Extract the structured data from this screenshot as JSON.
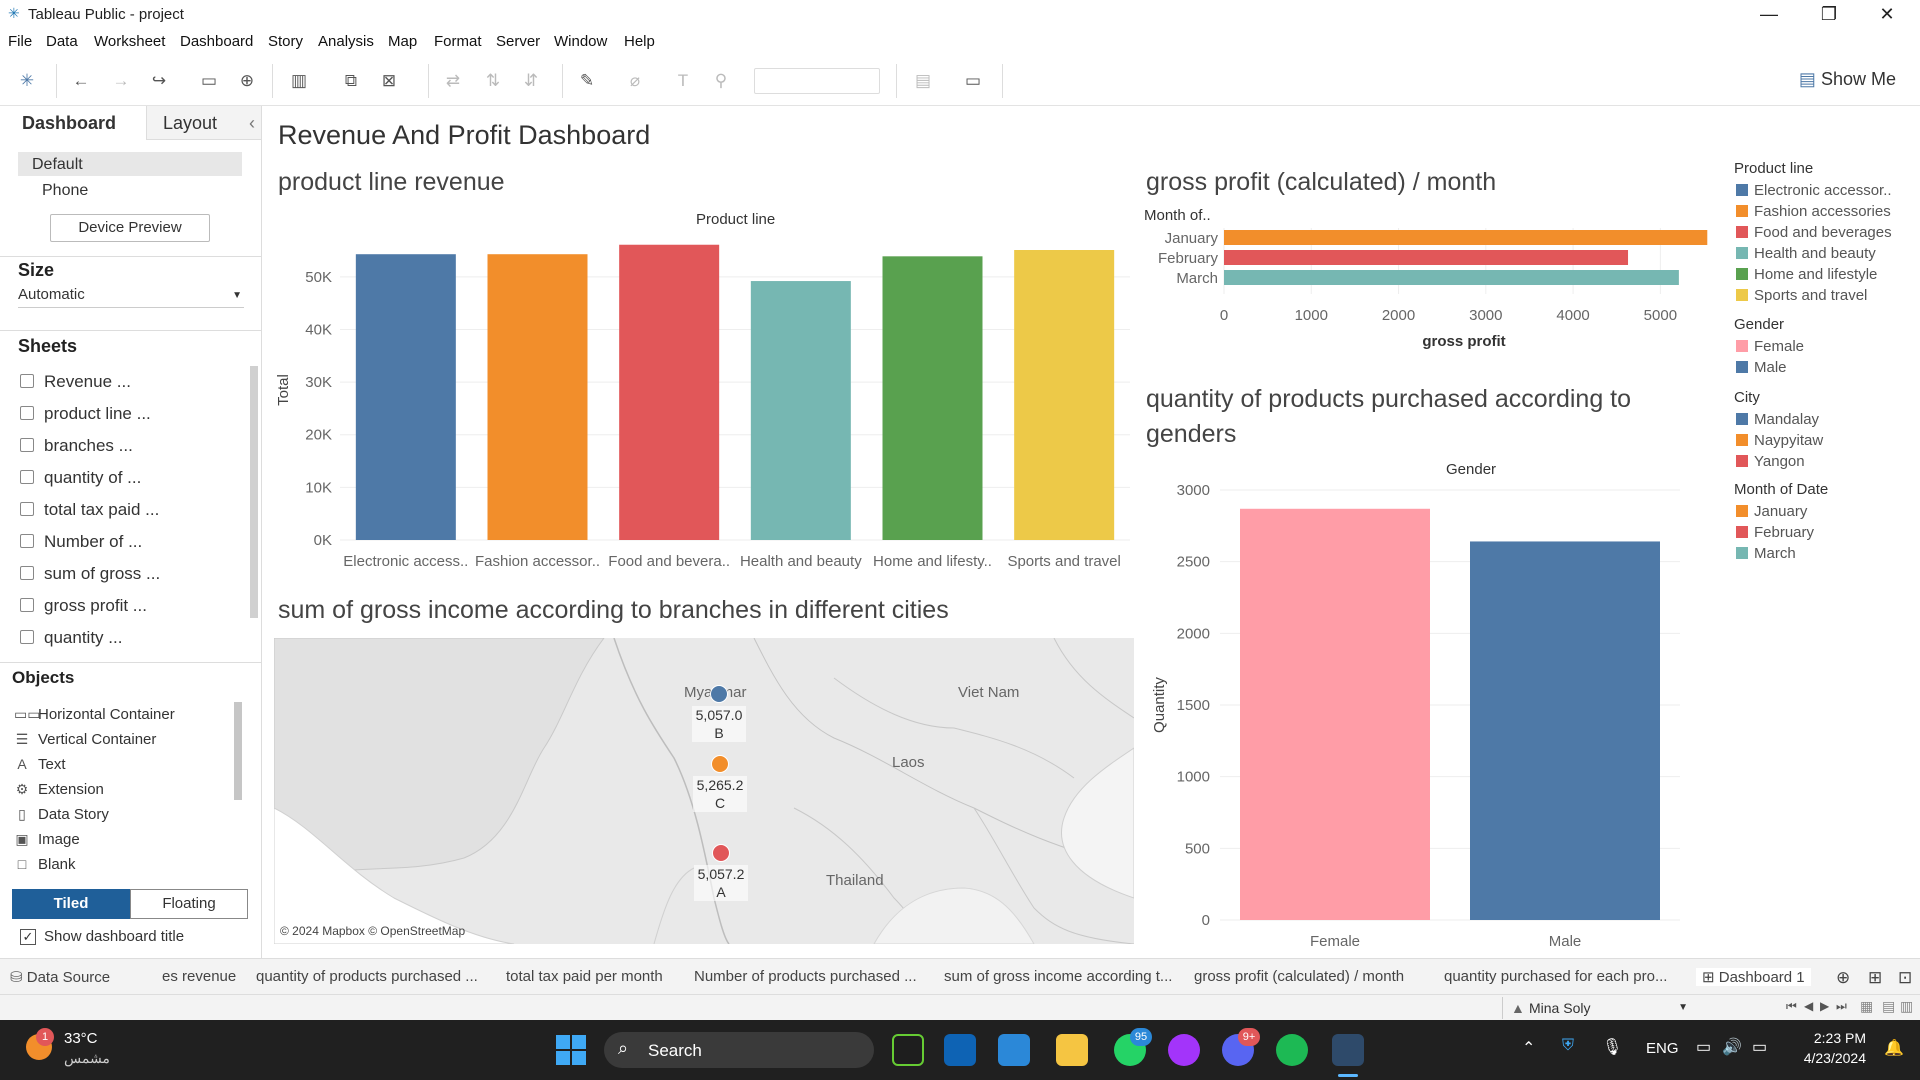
{
  "window": {
    "title": "Tableau Public - project",
    "minimize": "—",
    "restore": "❐",
    "close": "✕"
  },
  "menu": [
    "File",
    "Data",
    "Worksheet",
    "Dashboard",
    "Story",
    "Analysis",
    "Map",
    "Format",
    "Server",
    "Window",
    "Help"
  ],
  "toolbar": {
    "show_me": "Show Me"
  },
  "left_pane": {
    "tab_dashboard": "Dashboard",
    "tab_layout": "Layout",
    "collapse": "‹",
    "device_default": "Default",
    "device_phone": "Phone",
    "device_preview": "Device Preview",
    "size_title": "Size",
    "size_value": "Automatic",
    "sheets_title": "Sheets",
    "sheets": [
      "Revenue ...",
      "product line ...",
      "branches ...",
      "quantity of ...",
      "total tax paid ...",
      "Number of ...",
      "sum of gross ...",
      "gross profit ...",
      "quantity ..."
    ],
    "objects_title": "Objects",
    "objects": [
      {
        "icon": "▭▭",
        "label": "Horizontal Container"
      },
      {
        "icon": "☰",
        "label": "Vertical Container"
      },
      {
        "icon": "A",
        "label": "Text"
      },
      {
        "icon": "⚙",
        "label": "Extension"
      },
      {
        "icon": "▯",
        "label": "Data Story"
      },
      {
        "icon": "▣",
        "label": "Image"
      },
      {
        "icon": "□",
        "label": "Blank"
      }
    ],
    "tiled": "Tiled",
    "floating": "Floating",
    "show_title": "Show dashboard title"
  },
  "dashboard": {
    "title": "Revenue And Profit Dashboard",
    "colors": {
      "blue": "#4e79a7",
      "orange": "#f28e2b",
      "red": "#e15759",
      "teal": "#76b7b2",
      "green": "#59a14f",
      "yellow": "#edc948",
      "pink": "#ff9da7"
    }
  },
  "chart_data": [
    {
      "type": "bar",
      "title": "product line revenue",
      "header": "Product line",
      "ylabel": "Total",
      "categories": [
        "Electronic access..",
        "Fashion accessor..",
        "Food and bevera..",
        "Health and beauty",
        "Home and lifesty..",
        "Sports and travel"
      ],
      "values": [
        54300,
        54300,
        56100,
        49200,
        53900,
        55100
      ],
      "colors": [
        "#4e79a7",
        "#f28e2b",
        "#e15759",
        "#76b7b2",
        "#59a14f",
        "#edc948"
      ],
      "yticks": [
        "0K",
        "10K",
        "20K",
        "30K",
        "40K",
        "50K"
      ],
      "ylim": [
        0,
        57000
      ]
    },
    {
      "type": "bar",
      "orientation": "horizontal",
      "title": "gross profit (calculated) / month",
      "header": "Month of..",
      "xlabel": "gross profit",
      "categories": [
        "January",
        "February",
        "March"
      ],
      "values": [
        5537.7,
        4629.5,
        5212.2
      ],
      "colors": [
        "#f28e2b",
        "#e15759",
        "#76b7b2"
      ],
      "xticks": [
        "0",
        "1000",
        "2000",
        "3000",
        "4000",
        "5000"
      ],
      "xlim": [
        0,
        5500
      ]
    },
    {
      "type": "bar",
      "title": "quantity of products purchased according to genders",
      "header": "Gender",
      "ylabel": "Quantity",
      "categories": [
        "Female",
        "Male"
      ],
      "values": [
        2869,
        2641
      ],
      "colors": [
        "#ff9da7",
        "#4e79a7"
      ],
      "yticks": [
        "0",
        "500",
        "1000",
        "1500",
        "2000",
        "2500",
        "3000"
      ],
      "ylim": [
        0,
        3000
      ]
    }
  ],
  "map": {
    "title": "sum of gross income according to branches in different cities",
    "labels": {
      "myanmar": "Myanmar",
      "vietnam": "Viet Nam",
      "laos": "Laos",
      "thailand": "Thailand"
    },
    "points": [
      {
        "value": "5,057.0",
        "branch": "B",
        "color": "#4e79a7"
      },
      {
        "value": "5,265.2",
        "branch": "C",
        "color": "#f28e2b"
      },
      {
        "value": "5,057.2",
        "branch": "A",
        "color": "#e15759"
      }
    ],
    "attribution": "© 2024 Mapbox © OpenStreetMap"
  },
  "legends": {
    "product_line": {
      "title": "Product line",
      "items": [
        {
          "label": "Electronic accessor..",
          "color": "#4e79a7"
        },
        {
          "label": "Fashion accessories",
          "color": "#f28e2b"
        },
        {
          "label": "Food and beverages",
          "color": "#e15759"
        },
        {
          "label": "Health and beauty",
          "color": "#76b7b2"
        },
        {
          "label": "Home and lifestyle",
          "color": "#59a14f"
        },
        {
          "label": "Sports and travel",
          "color": "#edc948"
        }
      ]
    },
    "gender": {
      "title": "Gender",
      "items": [
        {
          "label": "Female",
          "color": "#ff9da7"
        },
        {
          "label": "Male",
          "color": "#4e79a7"
        }
      ]
    },
    "city": {
      "title": "City",
      "items": [
        {
          "label": "Mandalay",
          "color": "#4e79a7"
        },
        {
          "label": "Naypyitaw",
          "color": "#f28e2b"
        },
        {
          "label": "Yangon",
          "color": "#e15759"
        }
      ]
    },
    "month": {
      "title": "Month of Date",
      "items": [
        {
          "label": "January",
          "color": "#f28e2b"
        },
        {
          "label": "February",
          "color": "#e15759"
        },
        {
          "label": "March",
          "color": "#76b7b2"
        }
      ]
    }
  },
  "sheet_tabs": [
    "Data Source",
    "es revenue",
    "quantity of products purchased ...",
    "total tax paid per month",
    "Number of products purchased ...",
    "sum of gross income according t...",
    "gross profit (calculated) / month",
    "quantity purchased for each pro...",
    "Dashboard 1"
  ],
  "status": {
    "user": "Mina Soly"
  },
  "taskbar": {
    "weather_temp": "33°C",
    "weather_desc": "مشمس",
    "weather_badge": "1",
    "search": "Search",
    "lang": "ENG",
    "time": "2:23 PM",
    "date": "4/23/2024",
    "whatsapp_badge": "95",
    "discord_badge": "9+"
  }
}
